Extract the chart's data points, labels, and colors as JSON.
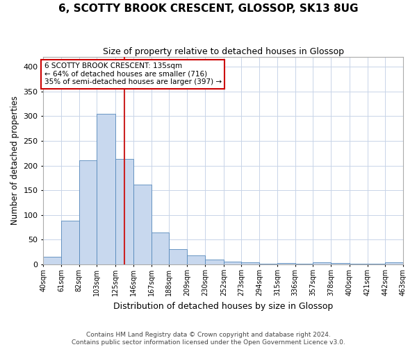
{
  "title": "6, SCOTTY BROOK CRESCENT, GLOSSOP, SK13 8UG",
  "subtitle": "Size of property relative to detached houses in Glossop",
  "xlabel": "Distribution of detached houses by size in Glossop",
  "ylabel": "Number of detached properties",
  "footer_line1": "Contains HM Land Registry data © Crown copyright and database right 2024.",
  "footer_line2": "Contains public sector information licensed under the Open Government Licence v3.0.",
  "bar_color": "#c8d8ee",
  "bar_edge_color": "#5588bb",
  "grid_color": "#c8d4e8",
  "subject_line_color": "#cc2222",
  "annotation_box_color": "#cc0000",
  "annotation_line1": "6 SCOTTY BROOK CRESCENT: 135sqm",
  "annotation_line2": "← 64% of detached houses are smaller (716)",
  "annotation_line3": "35% of semi-detached houses are larger (397) →",
  "subject_size": 135,
  "bin_edges": [
    40,
    61,
    82,
    103,
    125,
    146,
    167,
    188,
    209,
    230,
    252,
    273,
    294,
    315,
    336,
    357,
    378,
    400,
    421,
    442,
    463
  ],
  "bar_heights": [
    16,
    88,
    211,
    304,
    214,
    161,
    64,
    31,
    19,
    10,
    6,
    4,
    2,
    3,
    2,
    4,
    3,
    2,
    2,
    4
  ],
  "ylim": [
    0,
    420
  ],
  "yticks": [
    0,
    50,
    100,
    150,
    200,
    250,
    300,
    350,
    400
  ],
  "background_color": "#ffffff",
  "title_fontsize": 11,
  "subtitle_fontsize": 9
}
